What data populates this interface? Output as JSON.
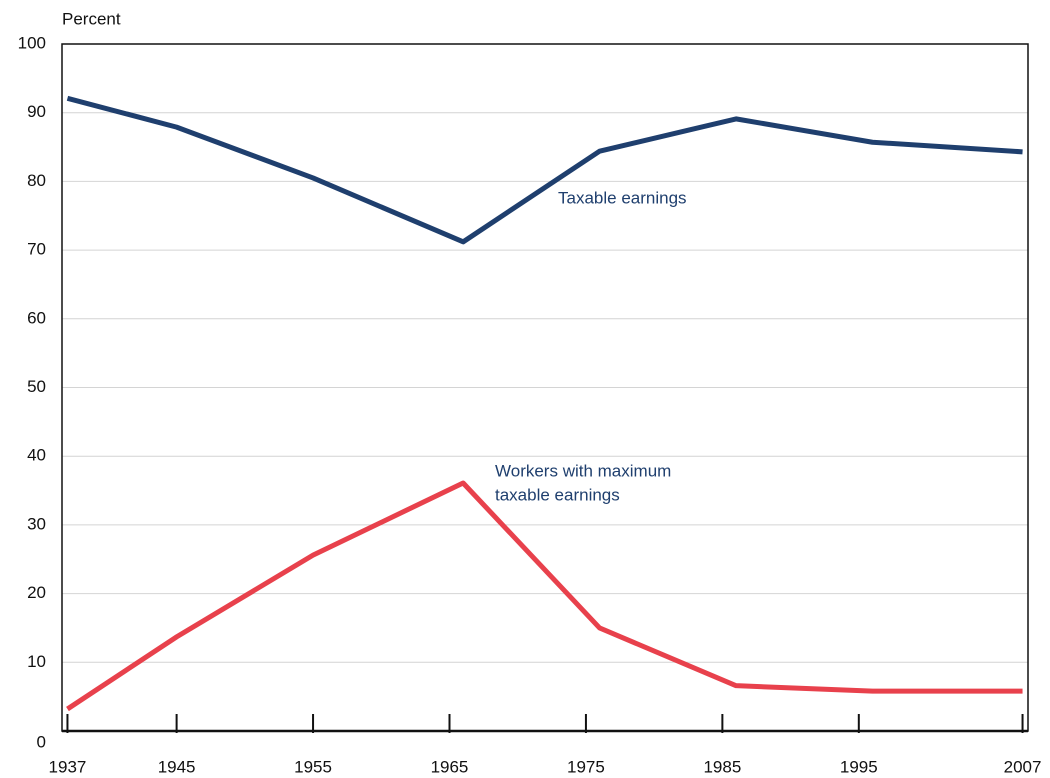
{
  "chart_data": {
    "type": "line",
    "y_label": "Percent",
    "x": [
      1937,
      1945,
      1955,
      1966,
      1976,
      1986,
      1996,
      2007
    ],
    "series": [
      {
        "color": "#1f3f6e",
        "values": [
          92.1,
          87.9,
          80.5,
          71.2,
          84.4,
          89.1,
          85.7,
          84.3
        ]
      },
      {
        "color": "#e8414c",
        "values": [
          3.2,
          13.7,
          25.6,
          36.1,
          15.0,
          6.6,
          5.8,
          5.8
        ]
      }
    ],
    "annotations": [
      "Taxable earnings",
      "Workers with maximum",
      "taxable earnings"
    ],
    "xlim": [
      1936.6,
      2007.4
    ],
    "ylim": [
      0,
      100
    ],
    "xticks": [
      1937,
      1945,
      1955,
      1965,
      1975,
      1985,
      1995,
      2007
    ],
    "yticks": [
      0,
      10,
      20,
      30,
      40,
      50,
      60,
      70,
      80,
      90,
      100
    ],
    "grid": true
  }
}
